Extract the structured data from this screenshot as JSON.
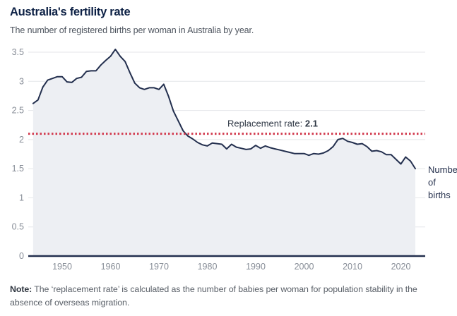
{
  "page": {
    "title": "Australia's fertility rate",
    "subtitle": "The number of registered births per woman in Australia by year.",
    "note_label": "Note:",
    "note_text": " The ‘replacement rate’ is calculated as the number of babies per woman for population stability in the absence of overseas migration."
  },
  "chart_data": {
    "type": "area",
    "title": "Australia's fertility rate",
    "subtitle": "The number of registered births per woman in Australia by year.",
    "xlabel": "",
    "ylabel": "",
    "grid": true,
    "xlim": [
      1944,
      2024
    ],
    "ylim": [
      0,
      3.5
    ],
    "x_ticks": [
      1950,
      1960,
      1970,
      1980,
      1990,
      2000,
      2010,
      2020
    ],
    "y_ticks": [
      0,
      0.5,
      1,
      1.5,
      2,
      2.5,
      3,
      3.5
    ],
    "x": [
      1944,
      1945,
      1946,
      1947,
      1948,
      1949,
      1950,
      1951,
      1952,
      1953,
      1954,
      1955,
      1956,
      1957,
      1958,
      1959,
      1960,
      1961,
      1962,
      1963,
      1964,
      1965,
      1966,
      1967,
      1968,
      1969,
      1970,
      1971,
      1972,
      1973,
      1974,
      1975,
      1976,
      1977,
      1978,
      1979,
      1980,
      1981,
      1982,
      1983,
      1984,
      1985,
      1986,
      1987,
      1988,
      1989,
      1990,
      1991,
      1992,
      1993,
      1994,
      1995,
      1996,
      1997,
      1998,
      1999,
      2000,
      2001,
      2002,
      2003,
      2004,
      2005,
      2006,
      2007,
      2008,
      2009,
      2010,
      2011,
      2012,
      2013,
      2014,
      2015,
      2016,
      2017,
      2018,
      2019,
      2020,
      2021,
      2022,
      2023
    ],
    "series": [
      {
        "name": "Number of births",
        "values": [
          2.62,
          2.68,
          2.9,
          3.02,
          3.05,
          3.08,
          3.08,
          2.99,
          2.98,
          3.05,
          3.07,
          3.17,
          3.18,
          3.18,
          3.28,
          3.36,
          3.43,
          3.55,
          3.43,
          3.34,
          3.15,
          2.97,
          2.89,
          2.86,
          2.89,
          2.89,
          2.86,
          2.95,
          2.74,
          2.49,
          2.32,
          2.15,
          2.06,
          2.01,
          1.95,
          1.91,
          1.89,
          1.94,
          1.93,
          1.92,
          1.84,
          1.92,
          1.87,
          1.85,
          1.83,
          1.84,
          1.9,
          1.85,
          1.89,
          1.86,
          1.84,
          1.82,
          1.8,
          1.78,
          1.76,
          1.76,
          1.76,
          1.73,
          1.76,
          1.75,
          1.77,
          1.81,
          1.88,
          2.0,
          2.02,
          1.97,
          1.95,
          1.92,
          1.93,
          1.88,
          1.8,
          1.81,
          1.79,
          1.74,
          1.74,
          1.66,
          1.58,
          1.7,
          1.63,
          1.5
        ]
      }
    ],
    "series_end_label_lines": [
      "Number",
      "of",
      "births"
    ],
    "annotations": [
      {
        "text": "Replacement rate: 2.1",
        "label_prefix": "Replacement rate: ",
        "label_value": "2.1",
        "y": 2.1,
        "line_style": "dotted"
      }
    ],
    "legend_position": "end-of-line",
    "colors": {
      "line": "#232f4e",
      "fill": "#edeff3",
      "grid": "#e4e6e9",
      "axis": "#232f4e",
      "replacement": "#d23a4e",
      "tick_text": "#878d97",
      "title": "#0d2145"
    }
  }
}
